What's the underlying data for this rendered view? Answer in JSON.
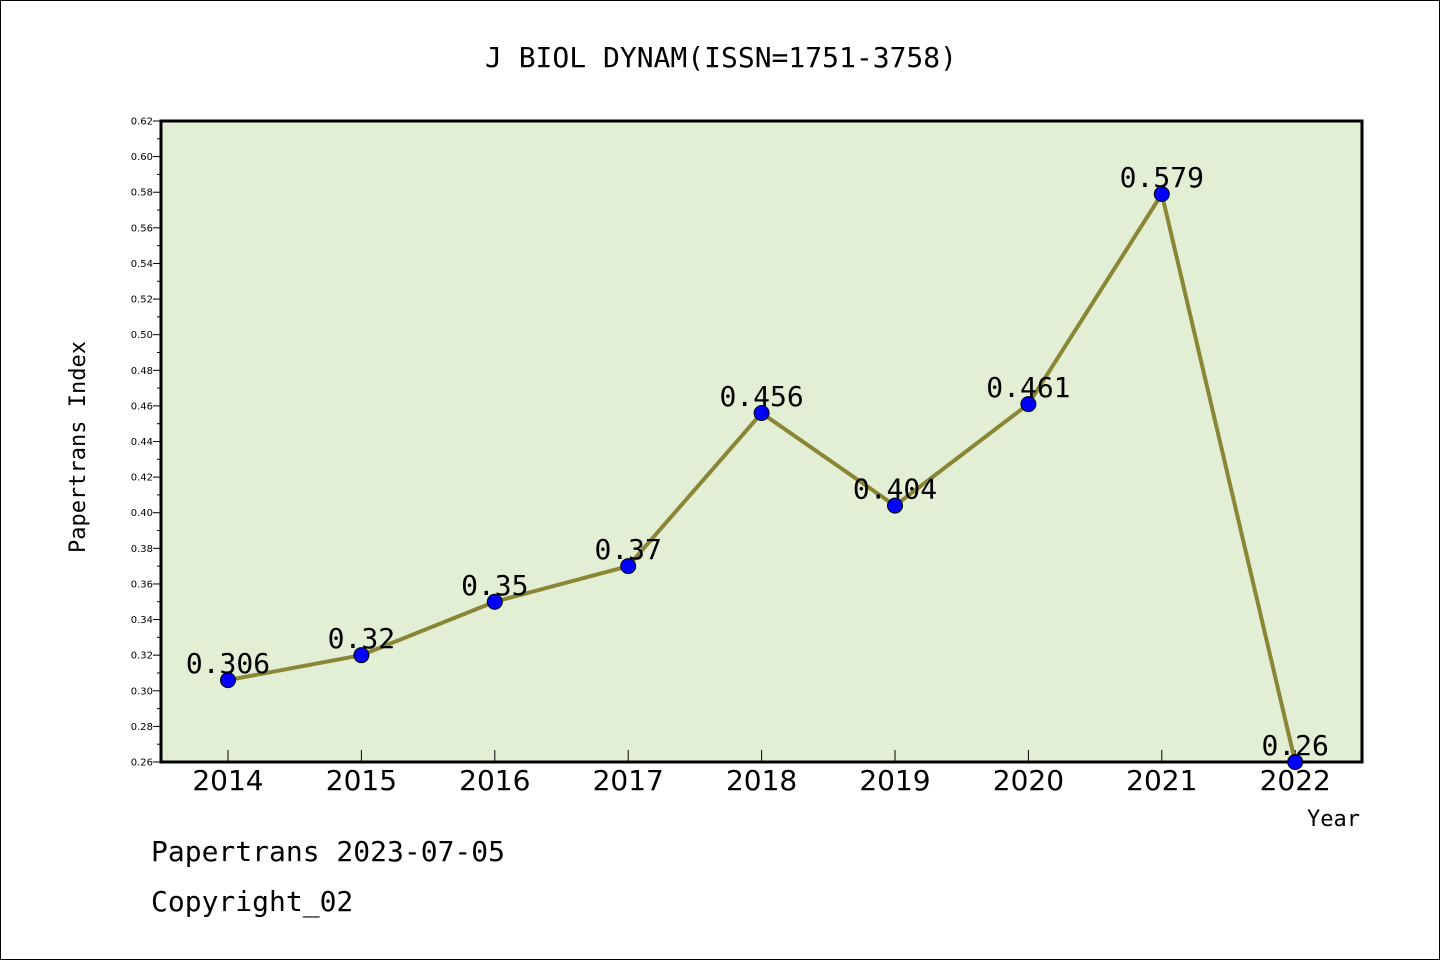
{
  "chart_data": {
    "type": "line",
    "title": "J BIOL DYNAM(ISSN=1751-3758)",
    "xlabel": "Year",
    "ylabel": "Papertrans Index",
    "categories": [
      "2014",
      "2015",
      "2016",
      "2017",
      "2018",
      "2019",
      "2020",
      "2021",
      "2022"
    ],
    "series": [
      {
        "values": [
          0.306,
          0.32,
          0.35,
          0.37,
          0.456,
          0.404,
          0.461,
          0.579,
          0.26
        ],
        "labels": [
          "0.306",
          "0.32",
          "0.35",
          "0.37",
          "0.456",
          "0.404",
          "0.461",
          "0.579",
          "0.26"
        ],
        "line_color": "#8b8636",
        "marker_color": "#0000ff"
      }
    ],
    "ylim": [
      0.26,
      0.62
    ],
    "yticks": [
      "0.26",
      "0.28",
      "0.30",
      "0.32",
      "0.34",
      "0.36",
      "0.38",
      "0.40",
      "0.42",
      "0.44",
      "0.46",
      "0.48",
      "0.50",
      "0.52",
      "0.54",
      "0.56",
      "0.58",
      "0.60",
      "0.62"
    ],
    "plot_background": "#e2efd4",
    "grid": false,
    "legend": "none"
  },
  "footer": {
    "line1": "Papertrans 2023-07-05",
    "line2": "Copyright_02"
  }
}
